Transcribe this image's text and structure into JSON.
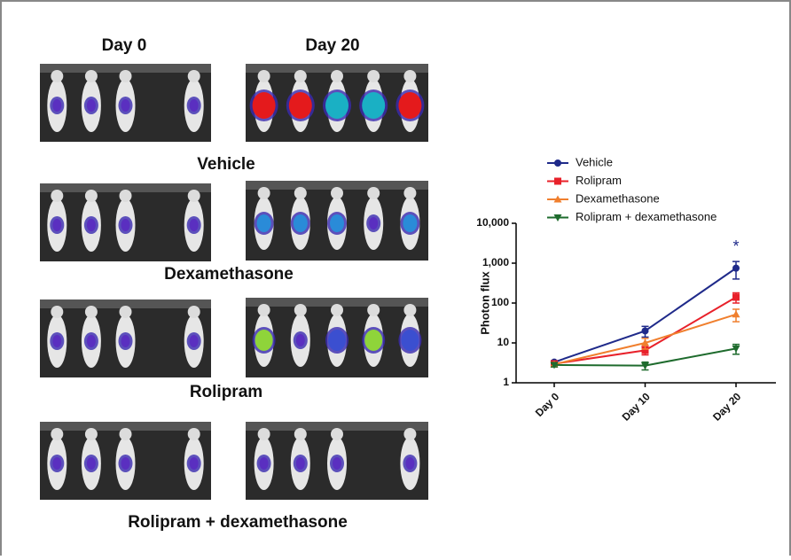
{
  "figure": {
    "column_labels": [
      "Day 0",
      "Day 20"
    ],
    "row_labels": [
      "Vehicle",
      "Dexamethasone",
      "Rolipram",
      "Rolipram + dexamethasone"
    ]
  },
  "chart_data": {
    "type": "line",
    "ylabel": "Photon flux",
    "annotation": "*",
    "categories": [
      "Day 0",
      "Day 10",
      "Day 20"
    ],
    "log_y": true,
    "ylim": [
      1,
      10000
    ],
    "yticks": [
      1,
      10,
      100,
      {
        "value": 1000,
        "label": "1,000"
      },
      {
        "value": 10000,
        "label": "10,000"
      }
    ],
    "series": [
      {
        "name": "Vehicle",
        "color": "#1f2a8a",
        "marker": "circle",
        "values": [
          3.3,
          20,
          750
        ],
        "errors": [
          0.3,
          6,
          350
        ]
      },
      {
        "name": "Rolipram",
        "color": "#e8212a",
        "marker": "square",
        "values": [
          3,
          6.5,
          140
        ],
        "errors": [
          0.3,
          1.5,
          40
        ]
      },
      {
        "name": "Dexamethasone",
        "color": "#f07f2e",
        "marker": "triangle-up",
        "values": [
          2.9,
          10,
          52
        ],
        "errors": [
          0.3,
          3,
          18
        ]
      },
      {
        "name": "Rolipram + dexamethasone",
        "color": "#1e6b2d",
        "marker": "triangle-down",
        "values": [
          2.8,
          2.7,
          7.2
        ],
        "errors": [
          0.3,
          0.6,
          2
        ]
      }
    ]
  }
}
